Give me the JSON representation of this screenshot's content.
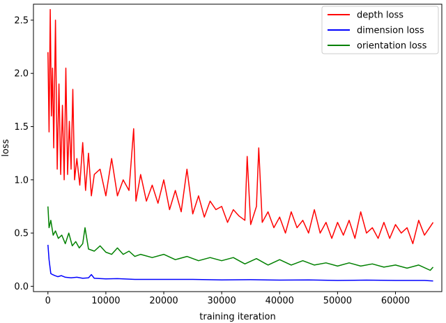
{
  "chart_data": {
    "type": "line",
    "title": "",
    "xlabel": "training iteration",
    "ylabel": "loss",
    "xlim": [
      -2500,
      68000
    ],
    "ylim": [
      -0.05,
      2.65
    ],
    "xticks": [
      0,
      10000,
      20000,
      30000,
      40000,
      50000,
      60000
    ],
    "xtick_labels": [
      "0",
      "10000",
      "20000",
      "30000",
      "40000",
      "50000",
      "60000"
    ],
    "yticks": [
      0.0,
      0.5,
      1.0,
      1.5,
      2.0,
      2.5
    ],
    "ytick_labels": [
      "0.0",
      "0.5",
      "1.0",
      "1.5",
      "2.0",
      "2.5"
    ],
    "grid": false,
    "legend_position": "top-right",
    "series": [
      {
        "name": "depth loss",
        "color": "#ff0000",
        "x": [
          0,
          200,
          400,
          600,
          800,
          1000,
          1300,
          1600,
          1900,
          2200,
          2500,
          2800,
          3100,
          3400,
          3700,
          4000,
          4300,
          4600,
          5000,
          5500,
          6000,
          6500,
          7000,
          7500,
          8000,
          9000,
          10000,
          11000,
          12000,
          13000,
          14000,
          14800,
          15200,
          16000,
          17000,
          18000,
          19000,
          20000,
          21000,
          22000,
          23000,
          24000,
          25000,
          26000,
          27000,
          28000,
          29000,
          30000,
          31000,
          32000,
          33000,
          34000,
          34400,
          35000,
          36000,
          36400,
          37000,
          38000,
          39000,
          40000,
          41000,
          42000,
          43000,
          44000,
          45000,
          46000,
          47000,
          48000,
          49000,
          50000,
          51000,
          52000,
          53000,
          54000,
          55000,
          56000,
          57000,
          58000,
          59000,
          60000,
          61000,
          62000,
          63000,
          64000,
          65000,
          66000,
          66500
        ],
        "values": [
          2.2,
          1.45,
          2.6,
          1.6,
          2.05,
          1.3,
          2.5,
          1.1,
          1.9,
          1.05,
          1.7,
          1.0,
          2.05,
          1.05,
          1.55,
          1.1,
          1.85,
          1.0,
          1.2,
          0.95,
          1.35,
          0.9,
          1.25,
          0.85,
          1.05,
          1.1,
          0.85,
          1.2,
          0.85,
          1.0,
          0.9,
          1.48,
          0.8,
          1.05,
          0.8,
          0.95,
          0.78,
          1.0,
          0.72,
          0.9,
          0.7,
          1.1,
          0.68,
          0.85,
          0.65,
          0.8,
          0.72,
          0.75,
          0.6,
          0.72,
          0.66,
          0.62,
          1.22,
          0.58,
          0.75,
          1.3,
          0.6,
          0.7,
          0.55,
          0.65,
          0.5,
          0.7,
          0.55,
          0.62,
          0.5,
          0.72,
          0.5,
          0.6,
          0.45,
          0.6,
          0.48,
          0.62,
          0.45,
          0.7,
          0.5,
          0.55,
          0.45,
          0.6,
          0.45,
          0.58,
          0.5,
          0.55,
          0.4,
          0.62,
          0.48,
          0.56,
          0.6
        ]
      },
      {
        "name": "dimension loss",
        "color": "#0000ff",
        "x": [
          0,
          200,
          500,
          800,
          1200,
          1700,
          2300,
          3000,
          4000,
          5000,
          6000,
          7000,
          7500,
          8000,
          10000,
          12000,
          15000,
          20000,
          25000,
          30000,
          35000,
          40000,
          45000,
          50000,
          55000,
          60000,
          65000,
          66500
        ],
        "values": [
          0.39,
          0.25,
          0.12,
          0.11,
          0.1,
          0.09,
          0.1,
          0.085,
          0.08,
          0.085,
          0.075,
          0.08,
          0.11,
          0.075,
          0.07,
          0.072,
          0.065,
          0.065,
          0.065,
          0.06,
          0.062,
          0.058,
          0.06,
          0.055,
          0.058,
          0.055,
          0.055,
          0.05
        ]
      },
      {
        "name": "orientation loss",
        "color": "#008000",
        "x": [
          0,
          200,
          500,
          900,
          1300,
          1800,
          2400,
          3000,
          3600,
          4200,
          4800,
          5400,
          6000,
          6400,
          7000,
          8000,
          9000,
          10000,
          11000,
          12000,
          13000,
          14000,
          15000,
          16000,
          18000,
          20000,
          22000,
          24000,
          26000,
          28000,
          30000,
          32000,
          34000,
          36000,
          38000,
          40000,
          42000,
          44000,
          46000,
          48000,
          50000,
          52000,
          54000,
          56000,
          58000,
          60000,
          62000,
          64000,
          66000,
          66500
        ],
        "values": [
          0.75,
          0.55,
          0.62,
          0.48,
          0.52,
          0.45,
          0.48,
          0.4,
          0.5,
          0.38,
          0.42,
          0.36,
          0.4,
          0.55,
          0.35,
          0.33,
          0.38,
          0.32,
          0.3,
          0.36,
          0.3,
          0.33,
          0.28,
          0.3,
          0.27,
          0.3,
          0.25,
          0.28,
          0.24,
          0.27,
          0.24,
          0.27,
          0.21,
          0.26,
          0.2,
          0.25,
          0.2,
          0.24,
          0.2,
          0.22,
          0.19,
          0.22,
          0.19,
          0.21,
          0.18,
          0.2,
          0.17,
          0.2,
          0.15,
          0.18
        ]
      }
    ]
  }
}
